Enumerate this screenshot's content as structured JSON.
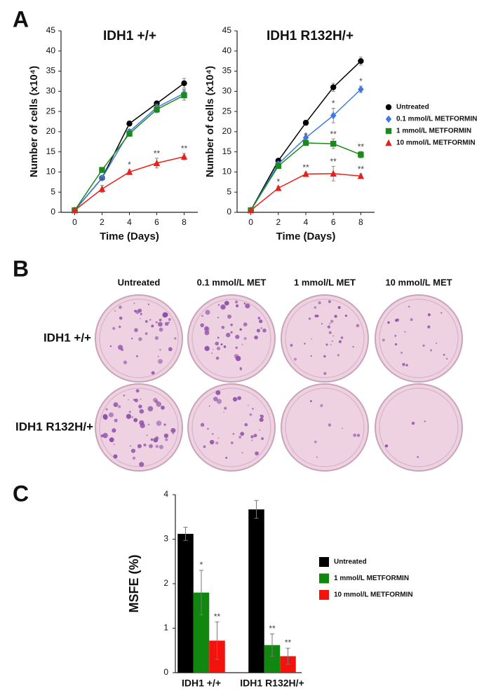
{
  "panel_labels": [
    "A",
    "B",
    "C"
  ],
  "chart_data": [
    {
      "type": "line",
      "title": "IDH1 +/+",
      "x_label": "Time (Days)",
      "y_label": "Number of cells (x10⁴)",
      "x": [
        0,
        2,
        4,
        6,
        8
      ],
      "xlim": [
        -1,
        9
      ],
      "xticks": [
        0,
        2,
        4,
        6,
        8
      ],
      "ylim": [
        0,
        45
      ],
      "yticks": [
        0,
        5,
        10,
        15,
        20,
        25,
        30,
        35,
        40,
        45
      ],
      "series": [
        {
          "name": "Untreated",
          "color": "#000000",
          "marker": "circle",
          "values": [
            0.5,
            8.5,
            22,
            27,
            32
          ],
          "errors": [
            0.3,
            0.5,
            0.6,
            0.6,
            1.2
          ],
          "labels": [
            null,
            null,
            null,
            null,
            null
          ]
        },
        {
          "name": "0.1 mmol/L METFORMIN",
          "color": "#3c78e6",
          "marker": "diamond",
          "values": [
            0.5,
            8.5,
            20,
            26,
            29.5
          ],
          "errors": [
            0.3,
            0.5,
            0.6,
            0.8,
            1.0
          ],
          "labels": [
            null,
            null,
            null,
            null,
            null
          ]
        },
        {
          "name": "1 mmol/L METFORMIN",
          "color": "#1a8a1a",
          "marker": "square",
          "values": [
            0.5,
            10.5,
            19.5,
            25.5,
            29
          ],
          "errors": [
            0.3,
            0.6,
            0.6,
            0.8,
            1.2
          ],
          "labels": [
            null,
            null,
            null,
            null,
            null
          ]
        },
        {
          "name": "10 mmol/L METFORMIN",
          "color": "#e8201a",
          "marker": "triangle",
          "values": [
            0.5,
            5.8,
            10,
            12.2,
            13.8
          ],
          "errors": [
            0.3,
            0.9,
            0.6,
            1.2,
            0.8
          ],
          "labels": [
            null,
            "*",
            "*",
            "**",
            "**"
          ]
        }
      ]
    },
    {
      "type": "line",
      "title": "IDH1 R132H/+",
      "x_label": "Time (Days)",
      "y_label": "Number of cells (x10⁴)",
      "x": [
        0,
        2,
        4,
        6,
        8
      ],
      "xlim": [
        -1,
        9
      ],
      "xticks": [
        0,
        2,
        4,
        6,
        8
      ],
      "ylim": [
        0,
        45
      ],
      "yticks": [
        0,
        5,
        10,
        15,
        20,
        25,
        30,
        35,
        40,
        45
      ],
      "legend": "right",
      "series": [
        {
          "name": "Untreated",
          "color": "#000000",
          "marker": "circle",
          "values": [
            0.5,
            12.8,
            22.2,
            31,
            37.5
          ],
          "errors": [
            0.3,
            0.5,
            0.6,
            1.0,
            1.0
          ],
          "labels": [
            null,
            null,
            null,
            null,
            null
          ]
        },
        {
          "name": "0.1 mmol/L METFORMIN",
          "color": "#3c78e6",
          "marker": "diamond",
          "values": [
            0.5,
            12,
            18.5,
            24,
            30.5
          ],
          "errors": [
            0.3,
            0.5,
            0.8,
            1.8,
            0.8
          ],
          "labels": [
            null,
            null,
            null,
            "*",
            "*"
          ]
        },
        {
          "name": "1 mmol/L METFORMIN",
          "color": "#1a8a1a",
          "marker": "square",
          "values": [
            0.5,
            11.5,
            17.2,
            17,
            14.3
          ],
          "errors": [
            0.3,
            0.5,
            0.6,
            1.2,
            0.8
          ],
          "labels": [
            null,
            null,
            "*",
            "**",
            "**"
          ]
        },
        {
          "name": "10 mmol/L METFORMIN",
          "color": "#e8201a",
          "marker": "triangle",
          "values": [
            0.5,
            6,
            9.5,
            9.6,
            9
          ],
          "errors": [
            0.3,
            0.4,
            0.4,
            1.8,
            0.5
          ],
          "labels": [
            null,
            "*",
            "**",
            "**",
            "**"
          ]
        }
      ]
    },
    {
      "type": "bar",
      "y_label": "MSFE (%)",
      "categories": [
        "IDH1 +/+",
        "IDH1 R132H/+"
      ],
      "ylim": [
        0,
        4
      ],
      "yticks": [
        0,
        1,
        2,
        3,
        4
      ],
      "legend": "right",
      "series": [
        {
          "name": "Untreated",
          "color": "#000000",
          "values": [
            3.12,
            3.67
          ],
          "errors": [
            0.15,
            0.2
          ],
          "labels": [
            null,
            null
          ]
        },
        {
          "name": "1 mmol/L METFORMIN",
          "color": "#12870f",
          "values": [
            1.8,
            0.62
          ],
          "errors": [
            0.5,
            0.25
          ],
          "labels": [
            "*",
            "**"
          ]
        },
        {
          "name": "10 mmol/L METFORMIN",
          "color": "#f4120c",
          "values": [
            0.72,
            0.37
          ],
          "errors": [
            0.42,
            0.18
          ],
          "labels": [
            "**",
            "**"
          ]
        }
      ]
    }
  ],
  "plates": {
    "columns": [
      "Untreated",
      "0.1 mmol/L MET",
      "1 mmol/L MET",
      "10 mmol/L MET"
    ],
    "rows": [
      "IDH1 +/+",
      "IDH1 R132H/+"
    ]
  }
}
